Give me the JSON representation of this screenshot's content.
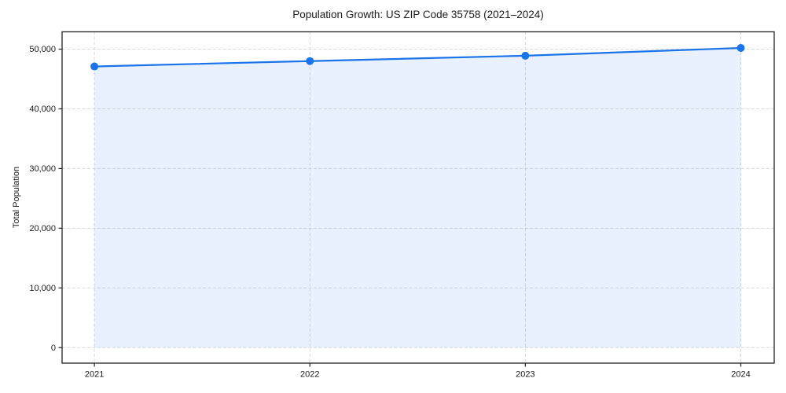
{
  "chart_data": {
    "type": "area",
    "title": "Population Growth: US ZIP Code 35758 (2021–2024)",
    "xlabel": "",
    "ylabel": "Total Population",
    "x": [
      2021,
      2022,
      2023,
      2024
    ],
    "series": [
      {
        "name": "Total Population",
        "values": [
          47100,
          48000,
          48900,
          50200
        ]
      }
    ],
    "fill_baseline": 0,
    "xticks": [
      2021,
      2022,
      2023,
      2024
    ],
    "xtick_labels": [
      "2021",
      "2022",
      "2023",
      "2024"
    ],
    "yticks": [
      0,
      10000,
      20000,
      30000,
      40000,
      50000
    ],
    "ytick_labels": [
      "0",
      "10,000",
      "20,000",
      "30,000",
      "40,000",
      "50,000"
    ],
    "xlim": [
      2020.85,
      2024.155
    ],
    "ylim": [
      -2600,
      52900
    ],
    "grid": true,
    "grid_style": "dashed",
    "legend": "none",
    "marker": "circle",
    "colors": {
      "line": "#1a73e8",
      "fill_opacity": 0.1,
      "grid": "#d9d9d9",
      "spine": "#222222",
      "text": "#1a1a1a",
      "background": "#ffffff"
    }
  }
}
